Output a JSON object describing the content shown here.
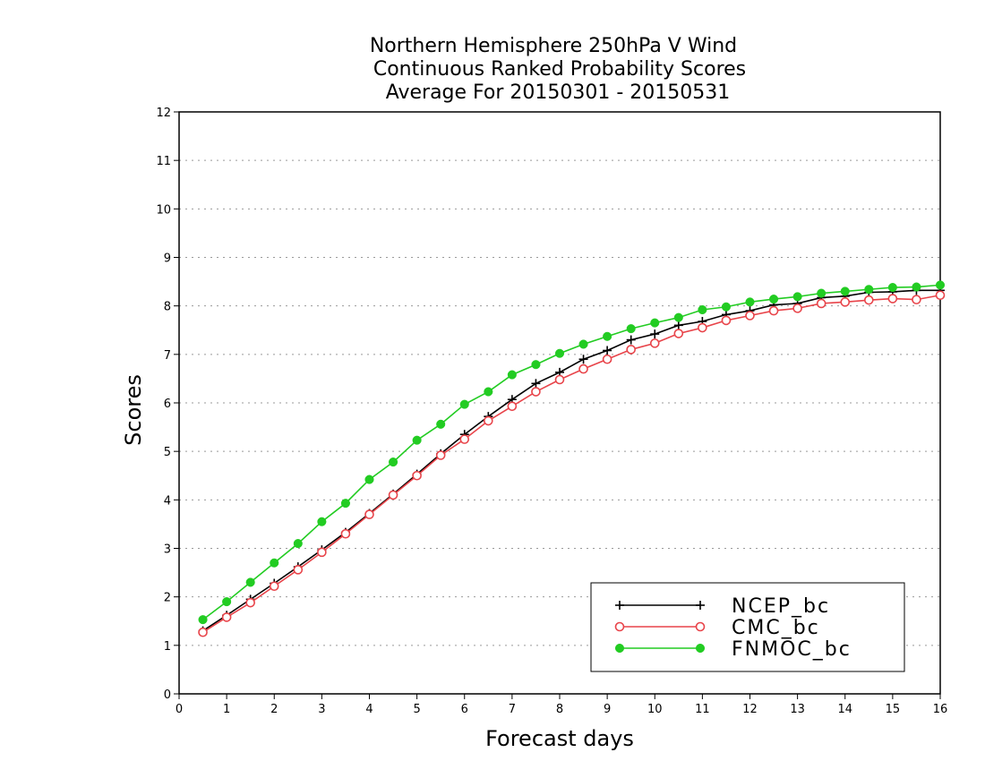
{
  "chart_data": {
    "type": "line",
    "title_lines": [
      "Northern Hemisphere 250hPa V Wind",
      "Continuous Ranked Probability Scores",
      "Average For 20150301 - 20150531"
    ],
    "xlabel": "Forecast days",
    "ylabel": "Scores",
    "xlim": [
      0,
      16
    ],
    "ylim": [
      0,
      12
    ],
    "xticks": [
      "0",
      "1",
      "2",
      "3",
      "4",
      "5",
      "6",
      "7",
      "8",
      "9",
      "10",
      "11",
      "12",
      "13",
      "14",
      "15",
      "16"
    ],
    "yticks": [
      "0",
      "1",
      "2",
      "3",
      "4",
      "5",
      "6",
      "7",
      "8",
      "9",
      "10",
      "11",
      "12"
    ],
    "grid": true,
    "legend_position": "bottom-right",
    "x": [
      0.5,
      1,
      1.5,
      2,
      2.5,
      3,
      3.5,
      4,
      4.5,
      5,
      5.5,
      6,
      6.5,
      7,
      7.5,
      8,
      8.5,
      9,
      9.5,
      10,
      10.5,
      11,
      11.5,
      12,
      12.5,
      13,
      13.5,
      14,
      14.5,
      15,
      15.5,
      16
    ],
    "series": [
      {
        "name": "NCEP_bc",
        "color": "#000000",
        "marker": "plus",
        "values": [
          1.3,
          1.62,
          1.95,
          2.28,
          2.62,
          2.97,
          3.33,
          3.72,
          4.12,
          4.53,
          4.95,
          5.35,
          5.72,
          6.07,
          6.4,
          6.63,
          6.9,
          7.08,
          7.3,
          7.42,
          7.6,
          7.68,
          7.82,
          7.9,
          8.02,
          8.05,
          8.17,
          8.2,
          8.28,
          8.29,
          8.32,
          8.32
        ]
      },
      {
        "name": "CMC_bc",
        "color": "#e8444a",
        "marker": "open-circle",
        "values": [
          1.27,
          1.58,
          1.88,
          2.22,
          2.56,
          2.92,
          3.3,
          3.7,
          4.1,
          4.5,
          4.92,
          5.25,
          5.63,
          5.93,
          6.23,
          6.48,
          6.7,
          6.9,
          7.1,
          7.23,
          7.43,
          7.55,
          7.7,
          7.8,
          7.9,
          7.95,
          8.05,
          8.08,
          8.12,
          8.15,
          8.13,
          8.22
        ]
      },
      {
        "name": "FNMOC_bc",
        "color": "#22cc22",
        "marker": "filled-circle",
        "values": [
          1.53,
          1.9,
          2.3,
          2.7,
          3.1,
          3.55,
          3.93,
          4.42,
          4.78,
          5.23,
          5.56,
          5.97,
          6.23,
          6.58,
          6.79,
          7.02,
          7.21,
          7.37,
          7.53,
          7.65,
          7.76,
          7.92,
          7.98,
          8.08,
          8.14,
          8.19,
          8.26,
          8.3,
          8.34,
          8.38,
          8.39,
          8.43
        ]
      }
    ]
  }
}
